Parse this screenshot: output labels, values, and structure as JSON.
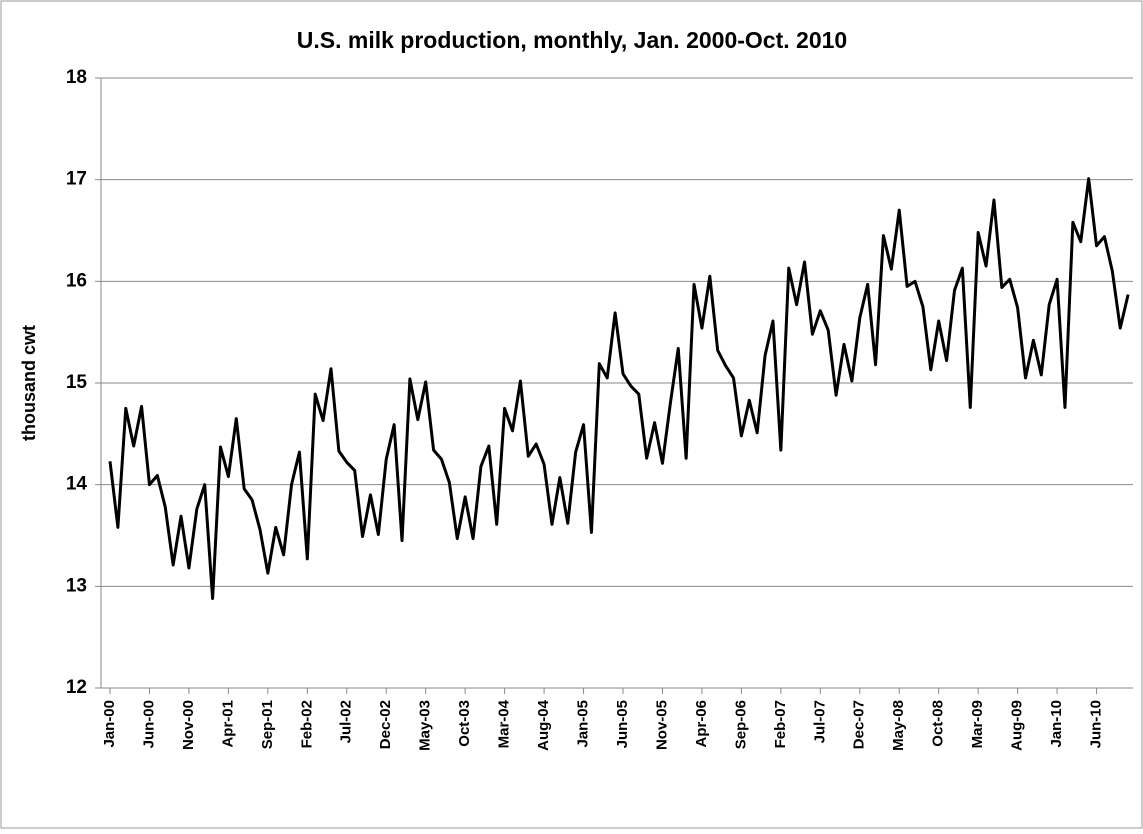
{
  "chart_data": {
    "type": "line",
    "title": "U.S. milk production, monthly, Jan. 2000-Oct. 2010",
    "y_label": "thousand cwt",
    "categories": [
      "Jan-00",
      null,
      null,
      null,
      null,
      "Jun-00",
      null,
      null,
      null,
      null,
      "Nov-00",
      null,
      null,
      null,
      null,
      "Apr-01",
      null,
      null,
      null,
      null,
      "Sep-01",
      null,
      null,
      null,
      null,
      "Feb-02",
      null,
      null,
      null,
      null,
      "Jul-02",
      null,
      null,
      null,
      null,
      "Dec-02",
      null,
      null,
      null,
      null,
      "May-03",
      null,
      null,
      null,
      null,
      "Oct-03",
      null,
      null,
      null,
      null,
      "Mar-04",
      null,
      null,
      null,
      null,
      "Aug-04",
      null,
      null,
      null,
      null,
      "Jan-05",
      null,
      null,
      null,
      null,
      "Jun-05",
      null,
      null,
      null,
      null,
      "Nov-05",
      null,
      null,
      null,
      null,
      "Apr-06",
      null,
      null,
      null,
      null,
      "Sep-06",
      null,
      null,
      null,
      null,
      "Feb-07",
      null,
      null,
      null,
      null,
      "Jul-07",
      null,
      null,
      null,
      null,
      "Dec-07",
      null,
      null,
      null,
      null,
      "May-08",
      null,
      null,
      null,
      null,
      "Oct-08",
      null,
      null,
      null,
      null,
      "Mar-09",
      null,
      null,
      null,
      null,
      "Aug-09",
      null,
      null,
      null,
      null,
      "Jan-10",
      null,
      null,
      null,
      null,
      "Jun-10",
      null,
      null,
      null,
      null
    ],
    "series": [
      {
        "color": "#000000",
        "values": [
          14.23,
          13.58,
          14.75,
          14.38,
          14.77,
          14.0,
          14.09,
          13.78,
          13.21,
          13.69,
          13.18,
          13.76,
          14.0,
          12.88,
          14.37,
          14.08,
          14.65,
          13.96,
          13.85,
          13.56,
          13.13,
          13.58,
          13.31,
          14.0,
          14.32,
          13.27,
          14.89,
          14.63,
          15.14,
          14.33,
          14.22,
          14.14,
          13.49,
          13.9,
          13.51,
          14.25,
          14.59,
          13.45,
          15.04,
          14.64,
          15.01,
          14.34,
          14.25,
          14.02,
          13.47,
          13.88,
          13.47,
          14.18,
          14.38,
          13.61,
          14.75,
          14.53,
          15.02,
          14.28,
          14.4,
          14.2,
          13.61,
          14.07,
          13.62,
          14.32,
          14.59,
          13.53,
          15.19,
          15.05,
          15.69,
          15.09,
          14.97,
          14.89,
          14.26,
          14.61,
          14.21,
          14.8,
          15.34,
          14.26,
          15.97,
          15.54,
          16.05,
          15.32,
          15.17,
          15.05,
          14.48,
          14.83,
          14.51,
          15.27,
          15.61,
          14.34,
          16.13,
          15.77,
          16.19,
          15.48,
          15.71,
          15.52,
          14.88,
          15.38,
          15.02,
          15.64,
          15.97,
          15.18,
          16.45,
          16.12,
          16.7,
          15.95,
          16.0,
          15.75,
          15.13,
          15.61,
          15.22,
          15.91,
          16.13,
          14.76,
          16.48,
          16.15,
          16.8,
          15.94,
          16.02,
          15.74,
          15.05,
          15.42,
          15.08,
          15.77,
          16.02,
          14.76,
          16.58,
          16.39,
          17.01,
          16.35,
          16.44,
          16.1,
          15.54,
          15.87
        ]
      }
    ],
    "ylim": [
      12,
      18
    ],
    "yticks": [
      12,
      13,
      14,
      15,
      16,
      17,
      18
    ],
    "grid": true
  }
}
